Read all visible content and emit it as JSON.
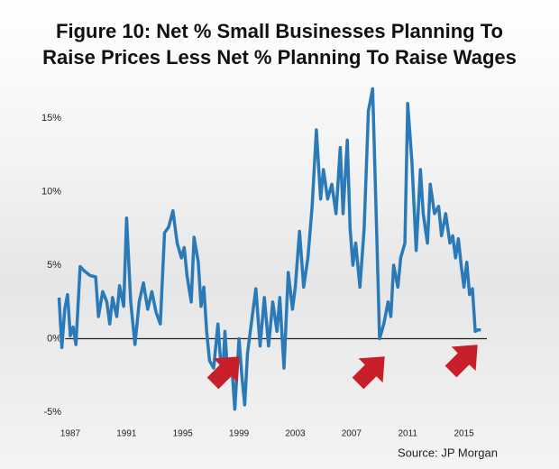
{
  "chart_data": {
    "type": "line",
    "title": "Figure 10: Net % Small Businesses Planning To Raise Prices Less Net % Planning To Raise Wages",
    "source": "Source: JP Morgan",
    "color": "#2a7ab8",
    "x": [
      1986.2,
      1986.4,
      1986.6,
      1986.8,
      1987.0,
      1987.2,
      1987.4,
      1987.7,
      1988.0,
      1988.4,
      1988.8,
      1989.0,
      1989.3,
      1989.6,
      1989.8,
      1990.0,
      1990.3,
      1990.5,
      1990.8,
      1991.0,
      1991.3,
      1991.6,
      1991.9,
      1992.2,
      1992.5,
      1992.8,
      1993.1,
      1993.4,
      1993.7,
      1994.0,
      1994.3,
      1994.6,
      1994.9,
      1995.1,
      1995.3,
      1995.6,
      1995.8,
      1996.1,
      1996.3,
      1996.5,
      1996.7,
      1996.9,
      1997.2,
      1997.5,
      1997.8,
      1998.0,
      1998.2,
      1998.5,
      1998.7,
      1999.0,
      1999.2,
      1999.4,
      1999.6,
      1999.9,
      2000.2,
      2000.5,
      2000.8,
      2001.1,
      2001.4,
      2001.7,
      2001.9,
      2002.2,
      2002.5,
      2002.8,
      2003.0,
      2003.3,
      2003.6,
      2003.9,
      2004.2,
      2004.5,
      2004.8,
      2005.0,
      2005.3,
      2005.6,
      2005.9,
      2006.2,
      2006.4,
      2006.7,
      2006.9,
      2007.1,
      2007.3,
      2007.6,
      2007.9,
      2008.2,
      2008.5,
      2008.8,
      2009.0,
      2009.3,
      2009.6,
      2009.8,
      2010.0,
      2010.3,
      2010.5,
      2010.8,
      2011.0,
      2011.3,
      2011.6,
      2011.9,
      2012.1,
      2012.4,
      2012.6,
      2012.9,
      2013.2,
      2013.4,
      2013.7,
      2014.0,
      2014.2,
      2014.4,
      2014.6,
      2014.8,
      2015.0,
      2015.2,
      2015.4,
      2015.6,
      2015.8,
      2016.0,
      2016.2
    ],
    "values": [
      2.8,
      -0.6,
      2.0,
      3.0,
      0.2,
      0.8,
      -0.4,
      4.9,
      4.6,
      4.3,
      4.2,
      1.5,
      3.2,
      2.5,
      1.0,
      2.8,
      1.5,
      3.6,
      2.2,
      8.2,
      2.5,
      -0.4,
      2.5,
      3.8,
      2.0,
      3.2,
      1.8,
      1.0,
      7.2,
      7.6,
      8.7,
      6.5,
      5.5,
      6.2,
      4.3,
      2.5,
      6.9,
      5.2,
      2.2,
      3.5,
      0.5,
      -1.5,
      -2.0,
      1.0,
      -3.0,
      0.5,
      -2.5,
      -2.0,
      -4.8,
      0.0,
      -2.5,
      -4.5,
      -1.0,
      1.2,
      3.4,
      -0.5,
      2.8,
      -0.5,
      2.5,
      0.5,
      2.8,
      -2.0,
      4.5,
      2.0,
      3.5,
      7.3,
      3.5,
      5.5,
      9.0,
      14.2,
      9.5,
      11.5,
      9.5,
      10.5,
      8.5,
      13.0,
      8.5,
      13.5,
      7.5,
      5.0,
      6.5,
      3.5,
      7.5,
      15.5,
      17.0,
      7.0,
      0.0,
      1.0,
      2.5,
      1.5,
      5.0,
      3.5,
      5.5,
      6.5,
      16.0,
      12.0,
      6.0,
      11.5,
      8.5,
      6.5,
      10.5,
      8.5,
      9.0,
      7.0,
      8.5,
      6.5,
      7.0,
      5.5,
      6.8,
      5.0,
      3.5,
      5.2,
      3.0,
      3.4,
      0.5,
      0.6,
      0.6
    ],
    "xlim": [
      1986,
      2016.5
    ],
    "xticks": [
      1987,
      1991,
      1995,
      1999,
      2003,
      2007,
      2011,
      2015
    ],
    "ylim": [
      -5,
      17
    ],
    "yticks": [
      {
        "value": 15,
        "label": "15%"
      },
      {
        "value": 10,
        "label": "10%"
      },
      {
        "value": 5,
        "label": "5%"
      },
      {
        "value": 0,
        "label": "0%"
      },
      {
        "value": -5,
        "label": "-5%"
      }
    ]
  }
}
